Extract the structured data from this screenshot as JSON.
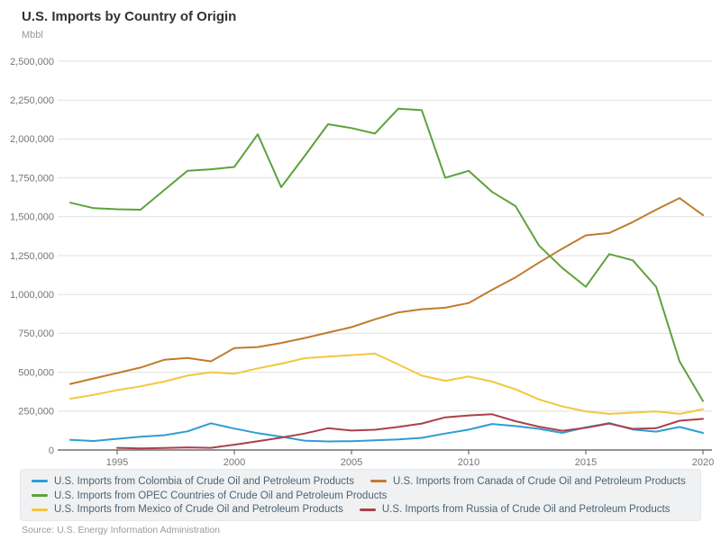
{
  "header": {
    "title": "U.S. Imports by Country of Origin",
    "unit": "Mbbl"
  },
  "source": "Source: U.S. Energy Information Administration",
  "colors": {
    "grid": "#e0e0e0",
    "axis": "#555555",
    "tick_label": "#757575",
    "legend_text": "#4b6373",
    "legend_bg": "#f0f1f2"
  },
  "chart_data": {
    "type": "line",
    "title": "U.S. Imports by Country of Origin",
    "ylabel": "Mbbl",
    "x": [
      1993,
      1994,
      1995,
      1996,
      1997,
      1998,
      1999,
      2000,
      2001,
      2002,
      2003,
      2004,
      2005,
      2006,
      2007,
      2008,
      2009,
      2010,
      2011,
      2012,
      2013,
      2014,
      2015,
      2016,
      2017,
      2018,
      2019,
      2020
    ],
    "x_ticks": [
      1995,
      2000,
      2005,
      2010,
      2015,
      2020
    ],
    "ylim": [
      0,
      2500000
    ],
    "y_tick_step": 250000,
    "grid": true,
    "legend_position": "bottom",
    "series": [
      {
        "key": "colombia",
        "name": "U.S. Imports from Colombia of Crude Oil and Petroleum Products",
        "color": "#2f9cd5",
        "values": [
          65000,
          58000,
          72000,
          85000,
          95000,
          120000,
          172000,
          138000,
          108000,
          85000,
          60000,
          55000,
          57000,
          62000,
          68000,
          78000,
          106000,
          131000,
          167000,
          154000,
          136000,
          110000,
          146000,
          173000,
          132000,
          118000,
          148000,
          110000
        ]
      },
      {
        "key": "canada",
        "name": "U.S. Imports from Canada of Crude Oil and Petroleum Products",
        "color": "#c07b2f",
        "values": [
          425000,
          460000,
          495000,
          530000,
          580000,
          592000,
          570000,
          655000,
          662000,
          688000,
          720000,
          755000,
          790000,
          840000,
          885000,
          905000,
          915000,
          945000,
          1030000,
          1110000,
          1205000,
          1295000,
          1380000,
          1395000,
          1465000,
          1545000,
          1620000,
          1510000
        ]
      },
      {
        "key": "opec",
        "name": "U.S. Imports from OPEC Countries of Crude Oil and Petroleum Products",
        "color": "#5ea23b",
        "values": [
          1590000,
          1555000,
          1548000,
          1545000,
          1670000,
          1795000,
          1805000,
          1820000,
          2030000,
          1690000,
          1890000,
          2095000,
          2070000,
          2035000,
          2195000,
          2185000,
          1750000,
          1795000,
          1660000,
          1568000,
          1315000,
          1170000,
          1050000,
          1260000,
          1220000,
          1050000,
          570000,
          315000
        ]
      },
      {
        "key": "mexico",
        "name": "U.S. Imports from Mexico of Crude Oil and Petroleum Products",
        "color": "#f3c73c",
        "values": [
          330000,
          355000,
          385000,
          410000,
          440000,
          478000,
          500000,
          490000,
          525000,
          555000,
          590000,
          600000,
          610000,
          620000,
          550000,
          478000,
          445000,
          472000,
          440000,
          390000,
          325000,
          280000,
          248000,
          232000,
          240000,
          248000,
          232000,
          262000
        ]
      },
      {
        "key": "russia",
        "name": "U.S. Imports from Russia of Crude Oil and Petroleum Products",
        "color": "#a8414b",
        "values": [
          null,
          null,
          14000,
          10000,
          13000,
          17000,
          14000,
          34000,
          56000,
          80000,
          106000,
          140000,
          125000,
          130000,
          148000,
          170000,
          210000,
          222000,
          230000,
          185000,
          150000,
          124000,
          143000,
          170000,
          136000,
          140000,
          188000,
          200000
        ]
      }
    ],
    "legend_rows": [
      [
        0,
        1
      ],
      [
        2
      ],
      [
        3,
        4
      ]
    ]
  }
}
